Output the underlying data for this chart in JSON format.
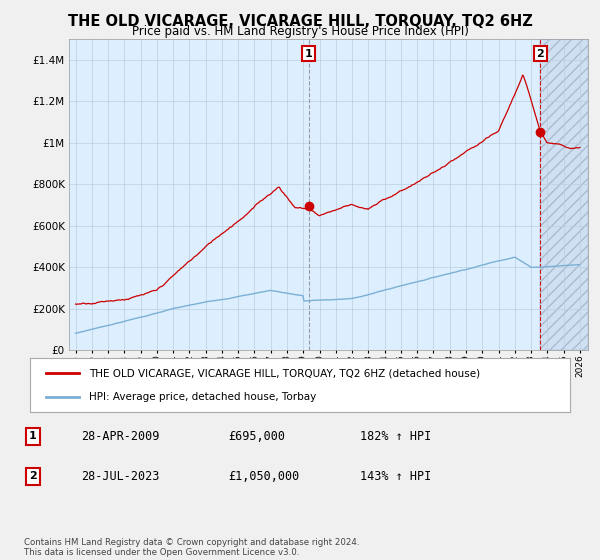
{
  "title": "THE OLD VICARAGE, VICARAGE HILL, TORQUAY, TQ2 6HZ",
  "subtitle": "Price paid vs. HM Land Registry's House Price Index (HPI)",
  "legend_label_red": "THE OLD VICARAGE, VICARAGE HILL, TORQUAY, TQ2 6HZ (detached house)",
  "legend_label_blue": "HPI: Average price, detached house, Torbay",
  "annotation1_label": "1",
  "annotation1_date": "28-APR-2009",
  "annotation1_price": "£695,000",
  "annotation1_hpi": "182% ↑ HPI",
  "annotation2_label": "2",
  "annotation2_date": "28-JUL-2023",
  "annotation2_price": "£1,050,000",
  "annotation2_hpi": "143% ↑ HPI",
  "footer": "Contains HM Land Registry data © Crown copyright and database right 2024.\nThis data is licensed under the Open Government Licence v3.0.",
  "red_color": "#cc0000",
  "blue_color": "#7ab0d4",
  "plot_bg_color": "#ddeeff",
  "hatch_color": "#c0cce0",
  "grid_color": "#b8cfe0",
  "bg_color": "#f0f0f0",
  "ylim": [
    0,
    1500000
  ],
  "yticks": [
    0,
    200000,
    400000,
    600000,
    800000,
    1000000,
    1200000,
    1400000
  ],
  "year_start": 1995,
  "year_end": 2026,
  "sale1_year": 2009.33,
  "sale1_price": 695000,
  "sale2_year": 2023.58,
  "sale2_price": 1050000
}
